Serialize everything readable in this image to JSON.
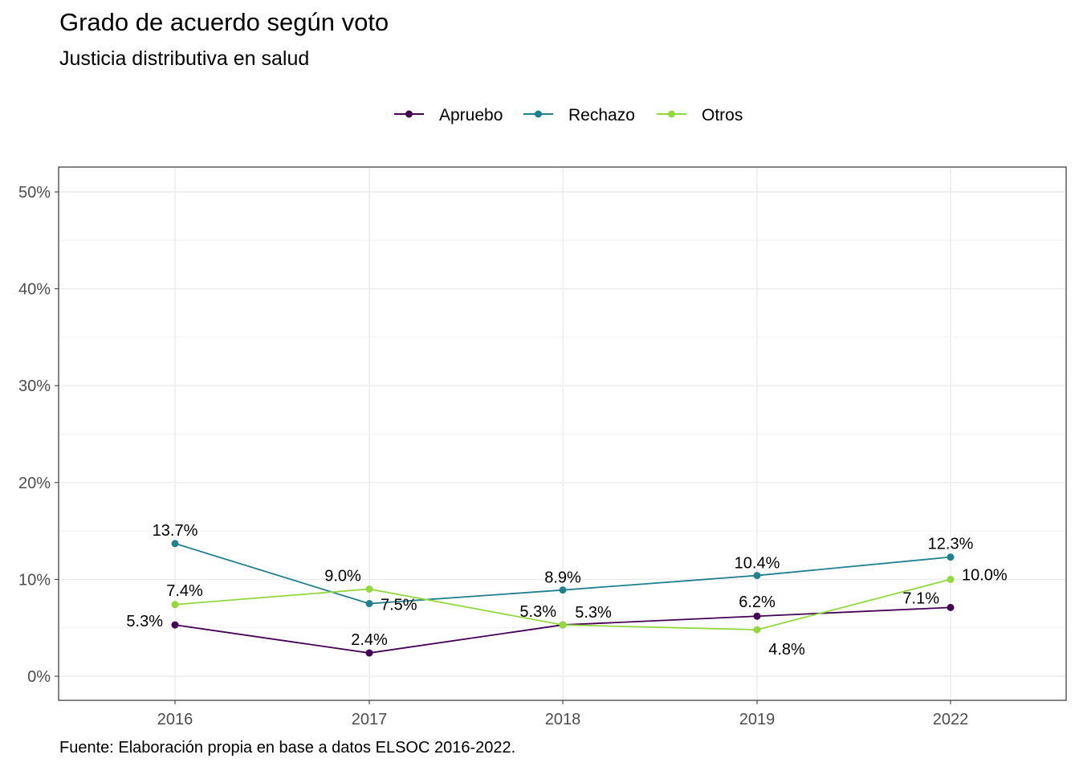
{
  "title": "Grado de acuerdo según voto",
  "subtitle": "Justicia distributiva en salud",
  "caption": "Fuente: Elaboración propia en base a datos ELSOC 2016-2022.",
  "chart_data": {
    "type": "line",
    "title": "Grado de acuerdo según voto",
    "subtitle": "Justicia distributiva en salud",
    "xlabel": "",
    "ylabel": "",
    "x": [
      "2016",
      "2017",
      "2018",
      "2019",
      "2022"
    ],
    "ylim": [
      0,
      0.5
    ],
    "yticks": [
      0,
      0.1,
      0.2,
      0.3,
      0.4,
      0.5
    ],
    "ytick_labels": [
      "0%",
      "10%",
      "20%",
      "30%",
      "40%",
      "50%"
    ],
    "grid": true,
    "legend_position": "top",
    "series": [
      {
        "name": "Apruebo",
        "color": "#440154",
        "values": [
          0.053,
          0.024,
          0.053,
          0.062,
          0.071
        ],
        "labels": [
          "5.3%",
          "2.4%",
          "5.3%",
          "6.2%",
          "7.1%"
        ]
      },
      {
        "name": "Rechazo",
        "color": "#21808D",
        "values": [
          0.137,
          0.075,
          0.089,
          0.104,
          0.123
        ],
        "labels": [
          "13.7%",
          "7.5%",
          "8.9%",
          "10.4%",
          "12.3%"
        ]
      },
      {
        "name": "Otros",
        "color": "#94D840",
        "values": [
          0.074,
          0.09,
          0.053,
          0.048,
          0.1
        ],
        "labels": [
          "7.4%",
          "9.0%",
          "5.3%",
          "4.8%",
          "10.0%"
        ]
      }
    ]
  }
}
